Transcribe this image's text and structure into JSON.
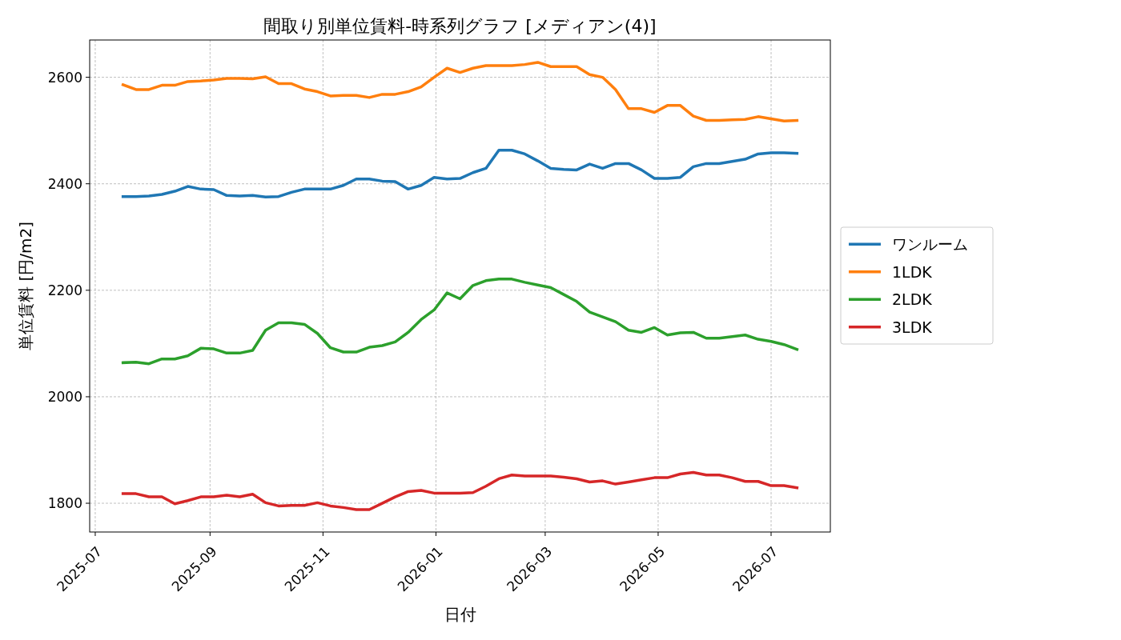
{
  "chart_data": {
    "type": "line",
    "title": "間取り別単位賃料-時系列グラフ [メディアン(4)]",
    "xlabel": "日付",
    "ylabel": "単位賃料 [円/m2]",
    "x": [
      "2025-07-16",
      "2025-07-23",
      "2025-07-30",
      "2025-08-06",
      "2025-08-13",
      "2025-08-20",
      "2025-08-27",
      "2025-09-03",
      "2025-09-10",
      "2025-09-17",
      "2025-09-24",
      "2025-10-01",
      "2025-10-08",
      "2025-10-15",
      "2025-10-22",
      "2025-10-29",
      "2025-11-05",
      "2025-11-12",
      "2025-11-19",
      "2025-11-26",
      "2025-12-03",
      "2025-12-10",
      "2025-12-17",
      "2025-12-24",
      "2025-12-31",
      "2026-01-07",
      "2026-01-14",
      "2026-01-21",
      "2026-01-28",
      "2026-02-04",
      "2026-02-11",
      "2026-02-18",
      "2026-02-25",
      "2026-03-04",
      "2026-03-11",
      "2026-03-18",
      "2026-03-25",
      "2026-04-01",
      "2026-04-08",
      "2026-04-15",
      "2026-04-22",
      "2026-04-29",
      "2026-05-06",
      "2026-05-13",
      "2026-05-20",
      "2026-05-27",
      "2026-06-03",
      "2026-06-10",
      "2026-06-17",
      "2026-06-24",
      "2026-07-01",
      "2026-07-08",
      "2026-07-15"
    ],
    "series": [
      {
        "name": "ワンルーム",
        "color": "#1f77b4",
        "values": [
          2376,
          2376,
          2377,
          2380,
          2386,
          2395,
          2390,
          2389,
          2378,
          2377,
          2378,
          2375,
          2376,
          2384,
          2390,
          2390,
          2390,
          2397,
          2409,
          2409,
          2405,
          2404,
          2390,
          2397,
          2412,
          2409,
          2410,
          2421,
          2429,
          2463,
          2463,
          2456,
          2443,
          2429,
          2427,
          2426,
          2437,
          2429,
          2438,
          2438,
          2426,
          2410,
          2410,
          2412,
          2432,
          2438,
          2438,
          2442,
          2446,
          2456,
          2458,
          2458,
          2457
        ]
      },
      {
        "name": "1LDK",
        "color": "#ff7f0e",
        "values": [
          2586,
          2577,
          2577,
          2585,
          2585,
          2592,
          2593,
          2595,
          2598,
          2598,
          2597,
          2601,
          2588,
          2588,
          2578,
          2573,
          2565,
          2566,
          2566,
          2562,
          2568,
          2568,
          2573,
          2582,
          2600,
          2617,
          2609,
          2617,
          2622,
          2622,
          2622,
          2624,
          2628,
          2620,
          2620,
          2620,
          2605,
          2600,
          2577,
          2541,
          2541,
          2534,
          2547,
          2547,
          2527,
          2519,
          2519,
          2520,
          2521,
          2526,
          2522,
          2518,
          2519
        ]
      },
      {
        "name": "2LDK",
        "color": "#2ca02c",
        "values": [
          2064,
          2065,
          2062,
          2071,
          2071,
          2077,
          2091,
          2090,
          2082,
          2082,
          2087,
          2125,
          2139,
          2139,
          2136,
          2119,
          2092,
          2084,
          2084,
          2093,
          2096,
          2103,
          2121,
          2145,
          2163,
          2195,
          2184,
          2209,
          2218,
          2221,
          2221,
          2215,
          2210,
          2205,
          2192,
          2179,
          2159,
          2150,
          2141,
          2125,
          2121,
          2130,
          2116,
          2120,
          2121,
          2110,
          2110,
          2113,
          2116,
          2108,
          2104,
          2098,
          2089
        ]
      },
      {
        "name": "3LDK",
        "color": "#d62728",
        "values": [
          1818,
          1818,
          1812,
          1812,
          1799,
          1805,
          1812,
          1812,
          1815,
          1812,
          1817,
          1801,
          1795,
          1796,
          1796,
          1801,
          1795,
          1792,
          1788,
          1788,
          1800,
          1812,
          1822,
          1824,
          1819,
          1819,
          1819,
          1820,
          1832,
          1846,
          1853,
          1851,
          1851,
          1851,
          1849,
          1846,
          1840,
          1842,
          1836,
          1840,
          1844,
          1848,
          1848,
          1855,
          1858,
          1853,
          1853,
          1848,
          1841,
          1841,
          1833,
          1833,
          1829
        ]
      }
    ],
    "xlim": [
      "2025-06-28",
      "2026-08-02"
    ],
    "xticks": [
      "2025-07",
      "2025-09",
      "2025-11",
      "2026-01",
      "2026-03",
      "2026-05",
      "2026-07"
    ],
    "ylim": [
      1746,
      2670
    ],
    "yticks": [
      1800,
      2000,
      2200,
      2400,
      2600
    ],
    "grid": true,
    "legend": "right"
  }
}
